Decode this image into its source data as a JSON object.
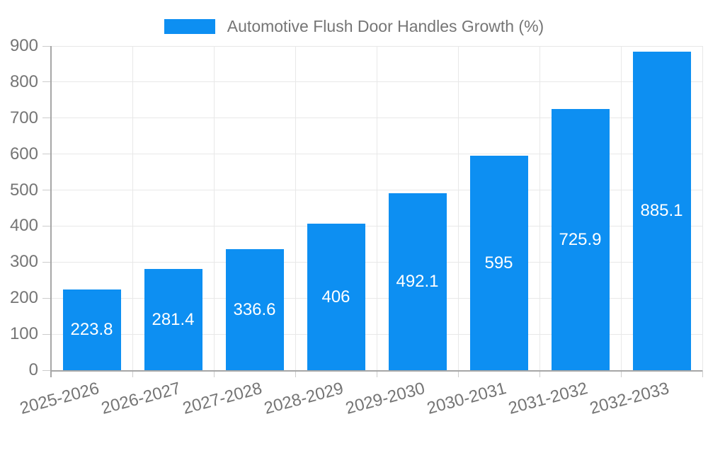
{
  "legend": {
    "label": "Automotive Flush Door Handles Growth (%)"
  },
  "chart_data": {
    "type": "bar",
    "title": "Automotive Flush Door Handles Growth (%)",
    "categories": [
      "2025-2026",
      "2026-2027",
      "2027-2028",
      "2028-2029",
      "2029-2030",
      "2030-2031",
      "2031-2032",
      "2032-2033"
    ],
    "values": [
      223.8,
      281.4,
      336.6,
      406,
      492.1,
      595,
      725.9,
      885.1
    ],
    "value_labels": [
      "223.8",
      "281.4",
      "336.6",
      "406",
      "492.1",
      "595",
      "725.9",
      "885.1"
    ],
    "xlabel": "",
    "ylabel": "",
    "ylim": [
      0,
      900
    ],
    "yticks": [
      0,
      100,
      200,
      300,
      400,
      500,
      600,
      700,
      800,
      900
    ],
    "grid": true,
    "legend_position": "top",
    "bar_color": "#0D8FF2",
    "data_label_color": "#FFFFFF",
    "axis_text_color": "#757575",
    "grid_color": "#E8E8E8",
    "axis_line_color": "#A6A6A6",
    "tick_color": "#CCCCCC",
    "background": "#FFFFFF"
  }
}
